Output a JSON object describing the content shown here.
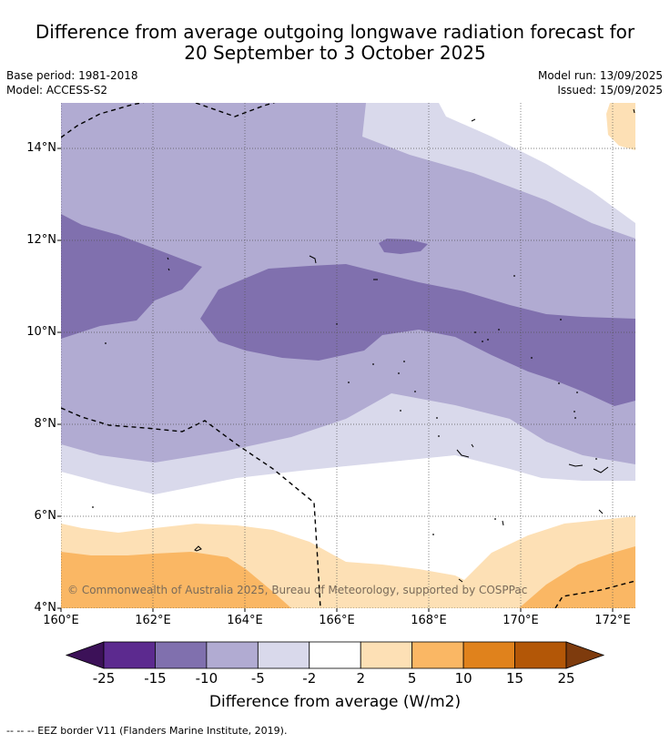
{
  "title_line1": "Difference from average outgoing longwave radiation forecast for",
  "title_line2": "20 September to 3 October 2025",
  "base_period": "Base period: 1981-2018",
  "model": "Model: ACCESS-S2",
  "model_run": "Model run: 13/09/2025",
  "issued": "Issued: 15/09/2025",
  "copyright": "© Commonwealth of Australia 2025, Bureau of Meteorology, supported by COSPPac",
  "colorbar_title": "Difference from average (W/m2)",
  "colorbar_ticks": [
    "-25",
    "-15",
    "-10",
    "-5",
    "-2",
    "2",
    "5",
    "10",
    "15",
    "25"
  ],
  "colorbar_colors": [
    "#5c2a8f",
    "#8070ae",
    "#b1abd2",
    "#d9d9eb",
    "#ffffff",
    "#fde0b5",
    "#fab764",
    "#e0821c",
    "#b35707"
  ],
  "colorbar_low_color": "#3c1158",
  "colorbar_high_color": "#7e3b0d",
  "footnote": "--  --  -- EEZ border V11 (Flanders Marine Institute, 2019).",
  "x_ticks": [
    "160°E",
    "162°E",
    "164°E",
    "166°E",
    "168°E",
    "170°E",
    "172°E"
  ],
  "y_ticks": [
    "14°N",
    "12°N",
    "10°N",
    "8°N",
    "6°N",
    "4°N"
  ]
}
